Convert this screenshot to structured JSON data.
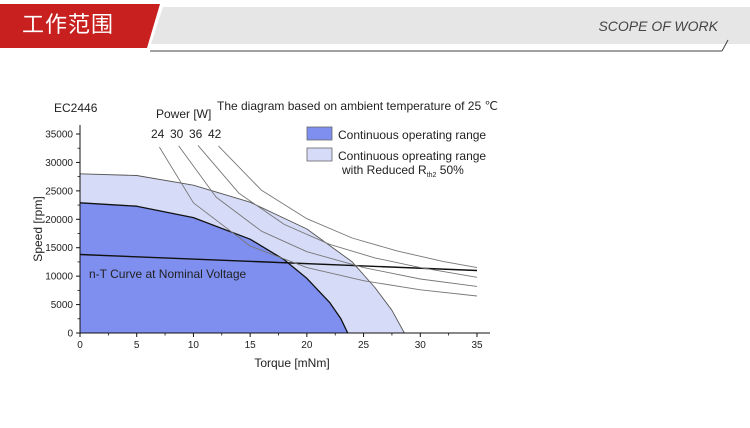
{
  "header": {
    "title_cn": "工作范围",
    "title_en": "SCOPE OF WORK",
    "accent_color": "#c8201f",
    "bar_color": "#e6e6e6"
  },
  "chart_data": {
    "type": "area",
    "model_label": "EC2446",
    "title": "The diagram based on ambient temperature of 25 ℃",
    "xlabel": "Torque [mNm]",
    "ylabel": "Speed [rpm]",
    "xlim": [
      0,
      35
    ],
    "ylim": [
      0,
      35000
    ],
    "xticks": [
      0,
      5,
      10,
      15,
      20,
      25,
      30,
      35
    ],
    "yticks": [
      0,
      5000,
      10000,
      15000,
      20000,
      25000,
      30000,
      35000
    ],
    "grid": false,
    "power_label": "Power [W]",
    "power_values": [
      "24",
      "30",
      "36",
      "42"
    ],
    "legend": [
      {
        "label": "Continuous operating range",
        "color": "#7f8ff0"
      },
      {
        "label": "Continuous opreating range",
        "label2": "with Reduced R",
        "sub": "th2",
        "tail": " 50%",
        "color": "#d6dbf7"
      }
    ],
    "nt_label": "n-T Curve at Nominal Voltage",
    "series": [
      {
        "name": "Continuous operating range",
        "fill": "#7f8ff0",
        "stroke": "#111111",
        "x": [
          0,
          5,
          10,
          15,
          18,
          20,
          22,
          23,
          23.6
        ],
        "y": [
          22900,
          22300,
          20300,
          16500,
          12900,
          9600,
          5400,
          2500,
          0
        ]
      },
      {
        "name": "Continuous opreating range with Reduced Rth2 50%",
        "fill": "#d6dbf7",
        "stroke": "#555555",
        "x": [
          0,
          5,
          10,
          15,
          20,
          24,
          26,
          27.5,
          28.6
        ],
        "y": [
          28000,
          27700,
          26000,
          23000,
          18300,
          12500,
          8000,
          4000,
          0
        ]
      },
      {
        "name": "n-T Curve at Nominal Voltage",
        "stroke": "#111111",
        "x": [
          0,
          35
        ],
        "y": [
          13800,
          11000
        ]
      },
      {
        "name": "24",
        "stroke": "#777777",
        "x": [
          7.0,
          10,
          15,
          20,
          25,
          30,
          35
        ],
        "y": [
          32700,
          22900,
          15300,
          11500,
          9200,
          7600,
          6500
        ]
      },
      {
        "name": "30",
        "stroke": "#777777",
        "x": [
          8.7,
          12,
          16,
          20,
          25,
          30,
          35
        ],
        "y": [
          32900,
          23900,
          17900,
          14300,
          11500,
          9500,
          8200
        ]
      },
      {
        "name": "36",
        "stroke": "#777777",
        "x": [
          10.4,
          14,
          18,
          22,
          26,
          30,
          35
        ],
        "y": [
          33000,
          24600,
          19100,
          15600,
          13200,
          11500,
          9800
        ]
      },
      {
        "name": "42",
        "stroke": "#777777",
        "x": [
          12.2,
          16,
          20,
          24,
          28,
          32,
          35
        ],
        "y": [
          32900,
          25100,
          20100,
          16700,
          14400,
          12600,
          11500
        ]
      }
    ]
  }
}
